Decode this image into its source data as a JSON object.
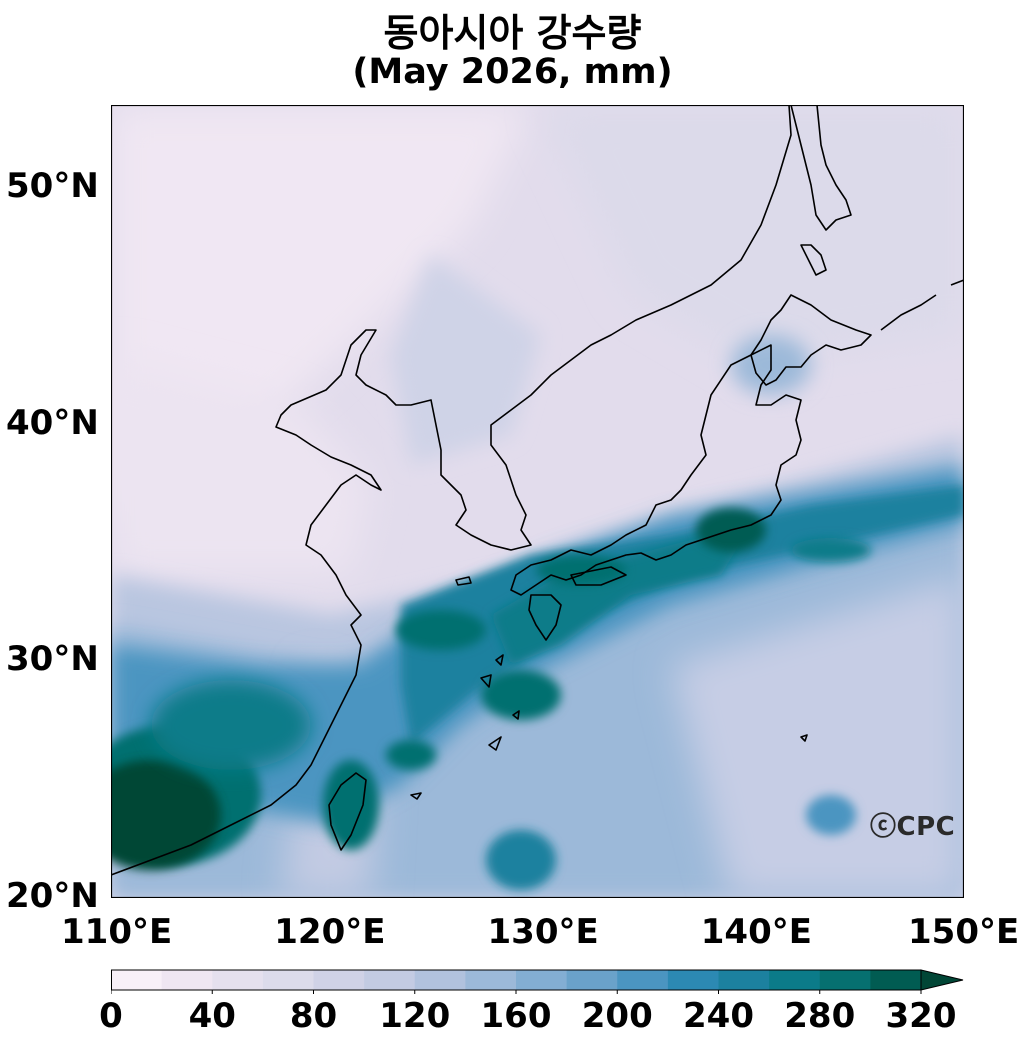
{
  "title": {
    "line1": "동아시아 강수량",
    "line2": "(May 2026, mm)"
  },
  "map": {
    "lon_range": [
      110,
      150
    ],
    "lat_range": [
      20,
      53.5
    ],
    "x_ticks": [
      {
        "value": 110,
        "label": "110°E"
      },
      {
        "value": 120,
        "label": "120°E"
      },
      {
        "value": 130,
        "label": "130°E"
      },
      {
        "value": 140,
        "label": "140°E"
      },
      {
        "value": 150,
        "label": "150°E"
      }
    ],
    "y_ticks": [
      {
        "value": 20,
        "label": "20°N"
      },
      {
        "value": 30,
        "label": "30°N"
      },
      {
        "value": 40,
        "label": "40°N"
      },
      {
        "value": 50,
        "label": "50°N"
      }
    ],
    "logo": "ⓒCPC",
    "precip_features": [
      {
        "name": "south-china-max",
        "lon": 113.5,
        "lat": 24.5,
        "mm": 320
      },
      {
        "name": "taiwan-max",
        "lon": 121.0,
        "lat": 23.5,
        "mm": 300
      },
      {
        "name": "east-china-sea-band",
        "lon": 129.0,
        "lat": 31.5,
        "mm": 280
      },
      {
        "name": "kyushu-shikoku-band",
        "lon": 132.0,
        "lat": 33.0,
        "mm": 280
      },
      {
        "name": "honshu-band",
        "lon": 138.0,
        "lat": 35.5,
        "mm": 300
      },
      {
        "name": "ryukyu-band",
        "lon": 126.5,
        "lat": 26.5,
        "mm": 260
      },
      {
        "name": "pacific-band",
        "lon": 145.0,
        "lat": 33.5,
        "mm": 200
      },
      {
        "name": "philippine-sea",
        "lon": 130.0,
        "lat": 21.5,
        "mm": 240
      },
      {
        "name": "mongolia-min",
        "lon": 112.0,
        "lat": 45.0,
        "mm": 10
      }
    ]
  },
  "colorbar": {
    "levels": [
      0,
      20,
      40,
      60,
      80,
      100,
      120,
      140,
      160,
      180,
      200,
      220,
      240,
      260,
      280,
      300,
      320
    ],
    "tick_labels": [
      "0",
      "40",
      "80",
      "120",
      "160",
      "200",
      "240",
      "280",
      "320"
    ],
    "colors": [
      "#f8f0f8",
      "#efe6f2",
      "#e5e0ee",
      "#dcdbeb",
      "#d0d2e7",
      "#c3cbe3",
      "#b1c2de",
      "#9cb9d9",
      "#83aed3",
      "#6aa2ca",
      "#4b95c1",
      "#2c89b3",
      "#1c819f",
      "#0b7b89",
      "#067070",
      "#015c52",
      "#014636"
    ],
    "extend": "max"
  }
}
